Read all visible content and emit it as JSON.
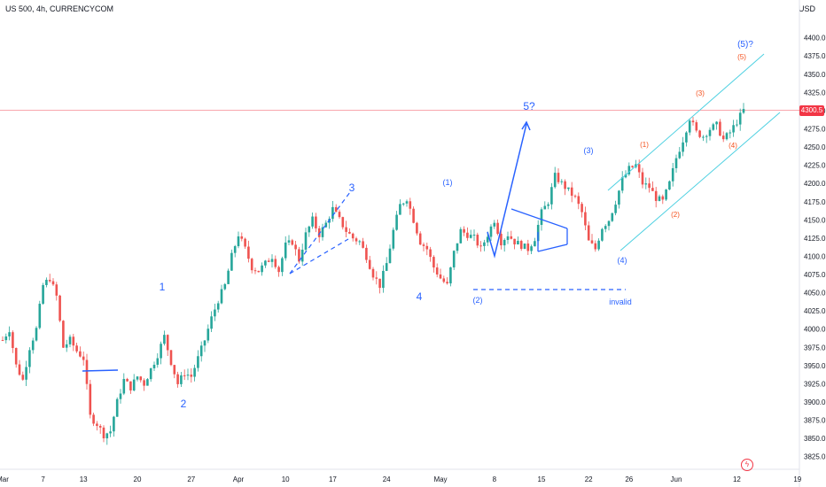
{
  "header": {
    "symbol": "US 500, 4h, CURRENCYCOM",
    "currency": "USD"
  },
  "price_label": "4300.5",
  "colors": {
    "up": "#26a69a",
    "down": "#ef5350",
    "wave_blue": "#2962ff",
    "wave_red": "#f4511e",
    "channel": "#4dd0e1",
    "price_line": "#f23645"
  },
  "icons": {
    "bottom_right": "lightning-icon"
  },
  "chart_data": {
    "type": "candlestick",
    "ylim": [
      3810,
      4430
    ],
    "yticks": [
      3825,
      3850,
      3875,
      3900,
      3925,
      3950,
      3975,
      4000,
      4025,
      4050,
      4075,
      4100,
      4125,
      4150,
      4175,
      4200,
      4225,
      4250,
      4275,
      4300,
      4325,
      4350,
      4375,
      4400
    ],
    "ytick_labels": [
      "3825.0",
      "3850.0",
      "3875.0",
      "3900.0",
      "3925.0",
      "3950.0",
      "3975.0",
      "4000.0",
      "4025.0",
      "4050.0",
      "4075.0",
      "4100.0",
      "4125.0",
      "4150.0",
      "4175.0",
      "4200.0",
      "4225.0",
      "4250.0",
      "4275.0",
      "4300.0",
      "4325.0",
      "4350.0",
      "4375.0",
      "4400.0"
    ],
    "xtick_labels": [
      "Mar",
      "7",
      "13",
      "20",
      "27",
      "Apr",
      "10",
      "17",
      "24",
      "May",
      "8",
      "15",
      "22",
      "26",
      "Jun",
      "12",
      "19"
    ],
    "last_price": 4300.5,
    "close_path": [
      [
        0,
        3985
      ],
      [
        2,
        4000
      ],
      [
        4,
        3950
      ],
      [
        6,
        3930
      ],
      [
        8,
        3975
      ],
      [
        10,
        4000
      ],
      [
        12,
        4060
      ],
      [
        14,
        4070
      ],
      [
        16,
        4045
      ],
      [
        18,
        3975
      ],
      [
        20,
        3985
      ],
      [
        22,
        3970
      ],
      [
        24,
        3960
      ],
      [
        26,
        3880
      ],
      [
        28,
        3870
      ],
      [
        30,
        3855
      ],
      [
        32,
        3860
      ],
      [
        34,
        3900
      ],
      [
        36,
        3930
      ],
      [
        38,
        3920
      ],
      [
        40,
        3935
      ],
      [
        42,
        3925
      ],
      [
        44,
        3945
      ],
      [
        46,
        3965
      ],
      [
        48,
        3990
      ],
      [
        50,
        3955
      ],
      [
        52,
        3925
      ],
      [
        54,
        3940
      ],
      [
        56,
        3935
      ],
      [
        58,
        3960
      ],
      [
        60,
        3985
      ],
      [
        62,
        4015
      ],
      [
        64,
        4040
      ],
      [
        66,
        4060
      ],
      [
        68,
        4100
      ],
      [
        70,
        4130
      ],
      [
        72,
        4110
      ],
      [
        74,
        4085
      ],
      [
        76,
        4080
      ],
      [
        78,
        4090
      ],
      [
        80,
        4100
      ],
      [
        82,
        4080
      ],
      [
        84,
        4115
      ],
      [
        86,
        4120
      ],
      [
        88,
        4095
      ],
      [
        90,
        4130
      ],
      [
        92,
        4150
      ],
      [
        94,
        4130
      ],
      [
        96,
        4145
      ],
      [
        98,
        4165
      ],
      [
        100,
        4150
      ],
      [
        102,
        4135
      ],
      [
        104,
        4125
      ],
      [
        106,
        4120
      ],
      [
        108,
        4100
      ],
      [
        110,
        4075
      ],
      [
        112,
        4060
      ],
      [
        114,
        4090
      ],
      [
        116,
        4135
      ],
      [
        118,
        4170
      ],
      [
        120,
        4180
      ],
      [
        122,
        4150
      ],
      [
        124,
        4120
      ],
      [
        126,
        4110
      ],
      [
        128,
        4085
      ],
      [
        130,
        4070
      ],
      [
        132,
        4060
      ],
      [
        134,
        4105
      ],
      [
        136,
        4135
      ],
      [
        138,
        4130
      ],
      [
        140,
        4125
      ],
      [
        142,
        4110
      ],
      [
        144,
        4130
      ],
      [
        146,
        4150
      ],
      [
        148,
        4120
      ],
      [
        150,
        4130
      ],
      [
        152,
        4120
      ],
      [
        154,
        4115
      ],
      [
        156,
        4110
      ],
      [
        158,
        4125
      ],
      [
        160,
        4160
      ],
      [
        162,
        4175
      ],
      [
        164,
        4210
      ],
      [
        166,
        4200
      ],
      [
        168,
        4190
      ],
      [
        170,
        4180
      ],
      [
        172,
        4160
      ],
      [
        174,
        4120
      ],
      [
        176,
        4110
      ],
      [
        178,
        4140
      ],
      [
        180,
        4150
      ],
      [
        182,
        4175
      ],
      [
        184,
        4205
      ],
      [
        186,
        4220
      ],
      [
        188,
        4225
      ],
      [
        190,
        4200
      ],
      [
        192,
        4195
      ],
      [
        194,
        4180
      ],
      [
        196,
        4175
      ],
      [
        198,
        4200
      ],
      [
        200,
        4235
      ],
      [
        202,
        4260
      ],
      [
        204,
        4290
      ],
      [
        206,
        4270
      ],
      [
        208,
        4265
      ],
      [
        210,
        4275
      ],
      [
        212,
        4280
      ],
      [
        214,
        4260
      ],
      [
        216,
        4270
      ],
      [
        218,
        4285
      ],
      [
        220,
        4300.5
      ]
    ],
    "wave_labels": [
      {
        "text": "1",
        "color": "blue"
      },
      {
        "text": "2",
        "color": "blue"
      },
      {
        "text": "3",
        "color": "blue"
      },
      {
        "text": "4",
        "color": "blue"
      },
      {
        "text": "5?",
        "color": "blue"
      },
      {
        "text": "(1)",
        "color": "blue"
      },
      {
        "text": "(2)",
        "color": "blue"
      },
      {
        "text": "(3)",
        "color": "blue"
      },
      {
        "text": "(4)",
        "color": "blue"
      },
      {
        "text": "(5)?",
        "color": "blue"
      },
      {
        "text": "invalid",
        "color": "blue"
      },
      {
        "text": "(1)",
        "color": "red"
      },
      {
        "text": "(2)",
        "color": "red"
      },
      {
        "text": "(3)",
        "color": "red"
      },
      {
        "text": "(4)",
        "color": "red"
      },
      {
        "text": "(5)",
        "color": "red"
      }
    ]
  }
}
